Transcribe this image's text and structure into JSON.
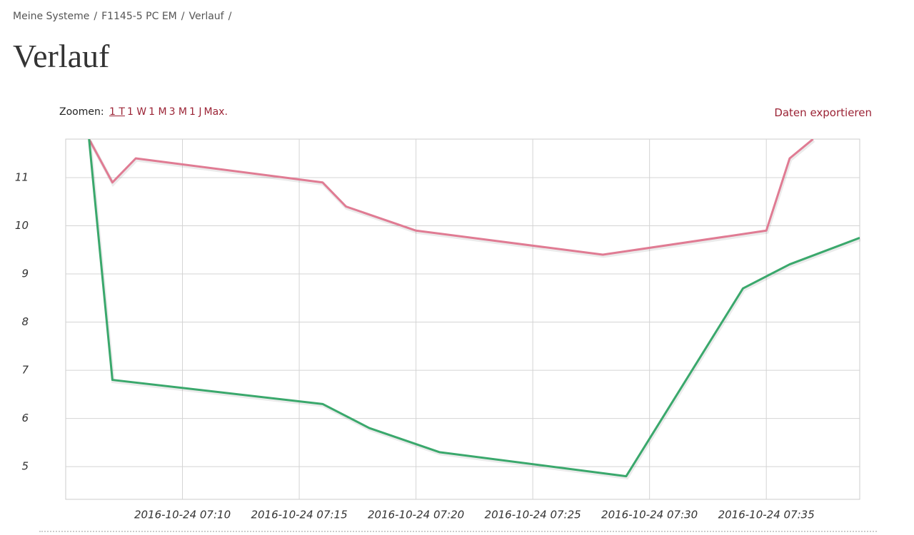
{
  "breadcrumb": {
    "items": [
      "Meine Systeme",
      "F1145-5 PC EM",
      "Verlauf"
    ],
    "separator": "/"
  },
  "header": {
    "title": "Verlauf"
  },
  "zoom": {
    "label": "Zoomen:",
    "options": [
      "1 T",
      "1 W",
      "1 M",
      "3 M",
      "1 J",
      "Max."
    ],
    "active": 0
  },
  "export": {
    "label": "Daten exportieren"
  },
  "chart_data": {
    "type": "line",
    "x": [
      "2016-10-24 07:06",
      "2016-10-24 07:07",
      "2016-10-24 07:08",
      "2016-10-24 07:16",
      "2016-10-24 07:17",
      "2016-10-24 07:18",
      "2016-10-24 07:20",
      "2016-10-24 07:21",
      "2016-10-24 07:28",
      "2016-10-24 07:29",
      "2016-10-24 07:34",
      "2016-10-24 07:35",
      "2016-10-24 07:36",
      "2016-10-24 07:37",
      "2016-10-24 07:39"
    ],
    "series": [
      {
        "color": "#e07b93",
        "values": [
          11.8,
          10.9,
          11.4,
          10.9,
          10.4,
          null,
          9.9,
          null,
          9.4,
          null,
          null,
          9.9,
          11.4,
          11.8,
          null
        ]
      },
      {
        "color": "#3aa86c",
        "values": [
          11.8,
          6.8,
          null,
          6.3,
          null,
          5.8,
          null,
          5.3,
          null,
          4.8,
          8.7,
          null,
          9.2,
          null,
          9.75
        ]
      }
    ],
    "xlim": [
      "2016-10-24 07:05",
      "2016-10-24 07:39"
    ],
    "xticks": [
      "2016-10-24 07:10",
      "2016-10-24 07:15",
      "2016-10-24 07:20",
      "2016-10-24 07:25",
      "2016-10-24 07:30",
      "2016-10-24 07:35"
    ],
    "ylim": [
      4.32,
      11.8
    ],
    "yticks": [
      5,
      6,
      7,
      8,
      9,
      10,
      11
    ],
    "grid": true
  }
}
